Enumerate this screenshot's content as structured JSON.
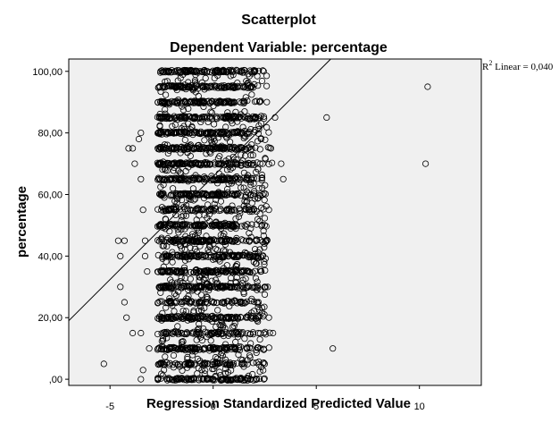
{
  "chart_data": {
    "type": "scatter",
    "title": "Scatterplot",
    "subtitle": "Dependent Variable: percentage",
    "xlabel": "Regression Standardized Predicted Value",
    "ylabel": "percentage",
    "xlim": [
      -7,
      13
    ],
    "ylim": [
      -2,
      104
    ],
    "xticks": [
      -5,
      0,
      5,
      10
    ],
    "xtick_labels": [
      "-5",
      "0",
      "5",
      "10"
    ],
    "yticks": [
      0,
      20,
      40,
      60,
      80,
      100
    ],
    "ytick_labels": [
      ",00",
      "20,00",
      "40,00",
      "60,00",
      "80,00",
      "100,00"
    ],
    "grid": false,
    "fit_line": {
      "label_prefix": "R",
      "label_sup": "2",
      "label_suffix": " Linear = 0,040",
      "points": [
        [
          -7,
          19
        ],
        [
          5.7,
          104
        ]
      ]
    },
    "outliers": [
      [
        10.4,
        95
      ],
      [
        10.3,
        70
      ],
      [
        5.5,
        85
      ],
      [
        5.8,
        10
      ],
      [
        3.4,
        65
      ],
      [
        3.3,
        70
      ],
      [
        -5.3,
        5
      ],
      [
        -4.6,
        45
      ],
      [
        -4.5,
        40
      ],
      [
        -4.5,
        30
      ],
      [
        -4.3,
        25
      ],
      [
        -4.3,
        45
      ],
      [
        -4.2,
        20
      ],
      [
        -4.1,
        75
      ],
      [
        -3.9,
        75
      ],
      [
        -3.8,
        70
      ],
      [
        -3.5,
        80
      ],
      [
        -3.9,
        15
      ],
      [
        -3.5,
        15
      ],
      [
        -3.4,
        3
      ],
      [
        -3.5,
        0
      ],
      [
        -3.1,
        10
      ],
      [
        -3.4,
        55
      ],
      [
        -3.3,
        40
      ],
      [
        -3.2,
        35
      ],
      [
        -3.5,
        65
      ],
      [
        -3.3,
        45
      ],
      [
        -3.6,
        78
      ],
      [
        2.9,
        15
      ],
      [
        3.0,
        85
      ],
      [
        2.5,
        30
      ],
      [
        2.4,
        40
      ],
      [
        2.5,
        50
      ],
      [
        2.6,
        45
      ],
      [
        2.7,
        55
      ],
      [
        2.3,
        35
      ],
      [
        2.8,
        75
      ],
      [
        2.6,
        90
      ],
      [
        2.4,
        60
      ],
      [
        2.2,
        25
      ],
      [
        2.5,
        5
      ],
      [
        2.3,
        10
      ],
      [
        2.7,
        20
      ],
      [
        2.4,
        70
      ]
    ]
  }
}
